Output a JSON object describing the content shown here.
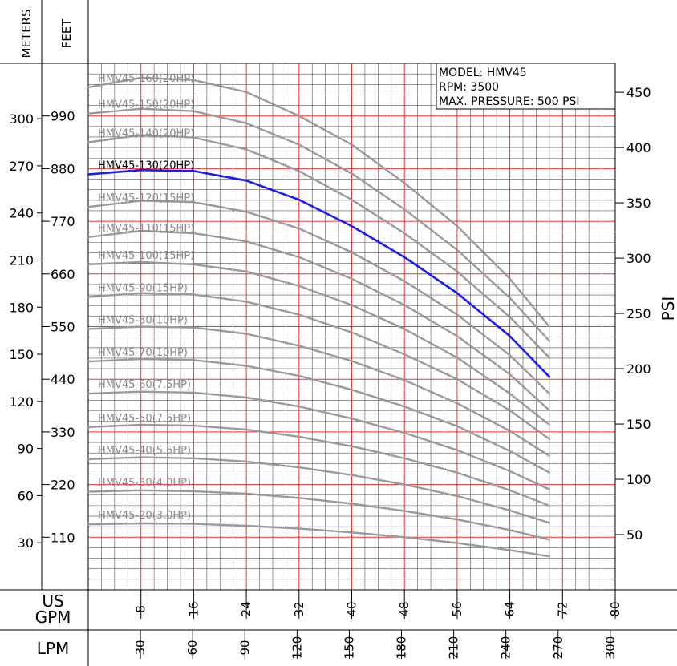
{
  "chart_data": {
    "type": "line",
    "info_box": {
      "model": "MODEL: HMV45",
      "rpm": "RPM: 3500",
      "max_pressure": "MAX. PRESSURE: 500 PSI"
    },
    "axes": {
      "meters_label": "METERS",
      "feet_label": "FEET",
      "psi_label": "PSI",
      "gpm_label": "US GPM",
      "gpm_label_line1": "US",
      "gpm_label_line2": "GPM",
      "lpm_label": "LPM",
      "gpm_range": [
        0,
        80
      ],
      "feet_range": [
        0,
        1100
      ],
      "meters_ticks": [
        "30",
        "60",
        "90",
        "120",
        "150",
        "180",
        "210",
        "240",
        "270",
        "300"
      ],
      "feet_ticks": [
        "110",
        "220",
        "330",
        "440",
        "550",
        "660",
        "770",
        "880",
        "990"
      ],
      "psi_ticks": [
        "50",
        "100",
        "150",
        "200",
        "250",
        "300",
        "350",
        "400",
        "450"
      ],
      "gpm_ticks": [
        "8",
        "16",
        "24",
        "32",
        "40",
        "48",
        "56",
        "64",
        "72",
        "80"
      ],
      "lpm_ticks": [
        "30",
        "60",
        "90",
        "120",
        "150",
        "180",
        "210",
        "240",
        "270",
        "300"
      ]
    },
    "x": [
      0,
      8,
      16,
      24,
      32,
      40,
      48,
      56,
      64,
      70
    ],
    "highlighted_series": "HMV45-130(20HP)",
    "series": [
      {
        "name": "HMV45-160(20HP)",
        "values": [
          1050,
          1070,
          1065,
          1040,
          990,
          930,
          850,
          760,
          650,
          550
        ]
      },
      {
        "name": "HMV45-150(20HP)",
        "values": [
          995,
          1005,
          1000,
          975,
          930,
          870,
          795,
          710,
          610,
          520
        ]
      },
      {
        "name": "HMV45-140(20HP)",
        "values": [
          935,
          950,
          945,
          920,
          875,
          815,
          745,
          665,
          570,
          485
        ]
      },
      {
        "name": "HMV45-130(20HP)",
        "values": [
          868,
          877,
          875,
          855,
          815,
          760,
          695,
          620,
          530,
          445
        ]
      },
      {
        "name": "HMV45-120(15HP)",
        "values": [
          800,
          813,
          810,
          790,
          755,
          705,
          645,
          575,
          490,
          410
        ]
      },
      {
        "name": "HMV45-110(15HP)",
        "values": [
          737,
          750,
          745,
          728,
          695,
          650,
          595,
          530,
          450,
          375
        ]
      },
      {
        "name": "HMV45-100(15HP)",
        "values": [
          680,
          685,
          680,
          665,
          635,
          595,
          545,
          485,
          410,
          345
        ]
      },
      {
        "name": "HMV45-90(15HP)",
        "values": [
          612,
          620,
          617,
          602,
          575,
          538,
          492,
          440,
          375,
          315
        ]
      },
      {
        "name": "HMV45-80(10HP)",
        "values": [
          545,
          550,
          548,
          535,
          510,
          478,
          438,
          390,
          332,
          280
        ]
      },
      {
        "name": "HMV45-70(10HP)",
        "values": [
          477,
          482,
          480,
          468,
          447,
          418,
          383,
          342,
          290,
          245
        ]
      },
      {
        "name": "HMV45-60(7.5HP)",
        "values": [
          410,
          414,
          412,
          402,
          383,
          358,
          328,
          292,
          248,
          210
        ]
      },
      {
        "name": "HMV45-50(7.5HP)",
        "values": [
          340,
          345,
          343,
          335,
          320,
          300,
          275,
          245,
          208,
          176
        ]
      },
      {
        "name": "HMV45-40(5.5HP)",
        "values": [
          273,
          277,
          275,
          268,
          256,
          240,
          220,
          196,
          166,
          140
        ]
      },
      {
        "name": "HMV45-30(4.0HP)",
        "values": [
          205,
          208,
          206,
          201,
          192,
          180,
          165,
          147,
          125,
          105
        ]
      },
      {
        "name": "HMV45-20(3.0HP)",
        "values": [
          137,
          139,
          138,
          134,
          128,
          120,
          110,
          98,
          83,
          70
        ]
      }
    ],
    "xlim": [
      0,
      80
    ],
    "ylim": [
      0,
      1100
    ],
    "grid": true,
    "legend": "inline-labels"
  }
}
